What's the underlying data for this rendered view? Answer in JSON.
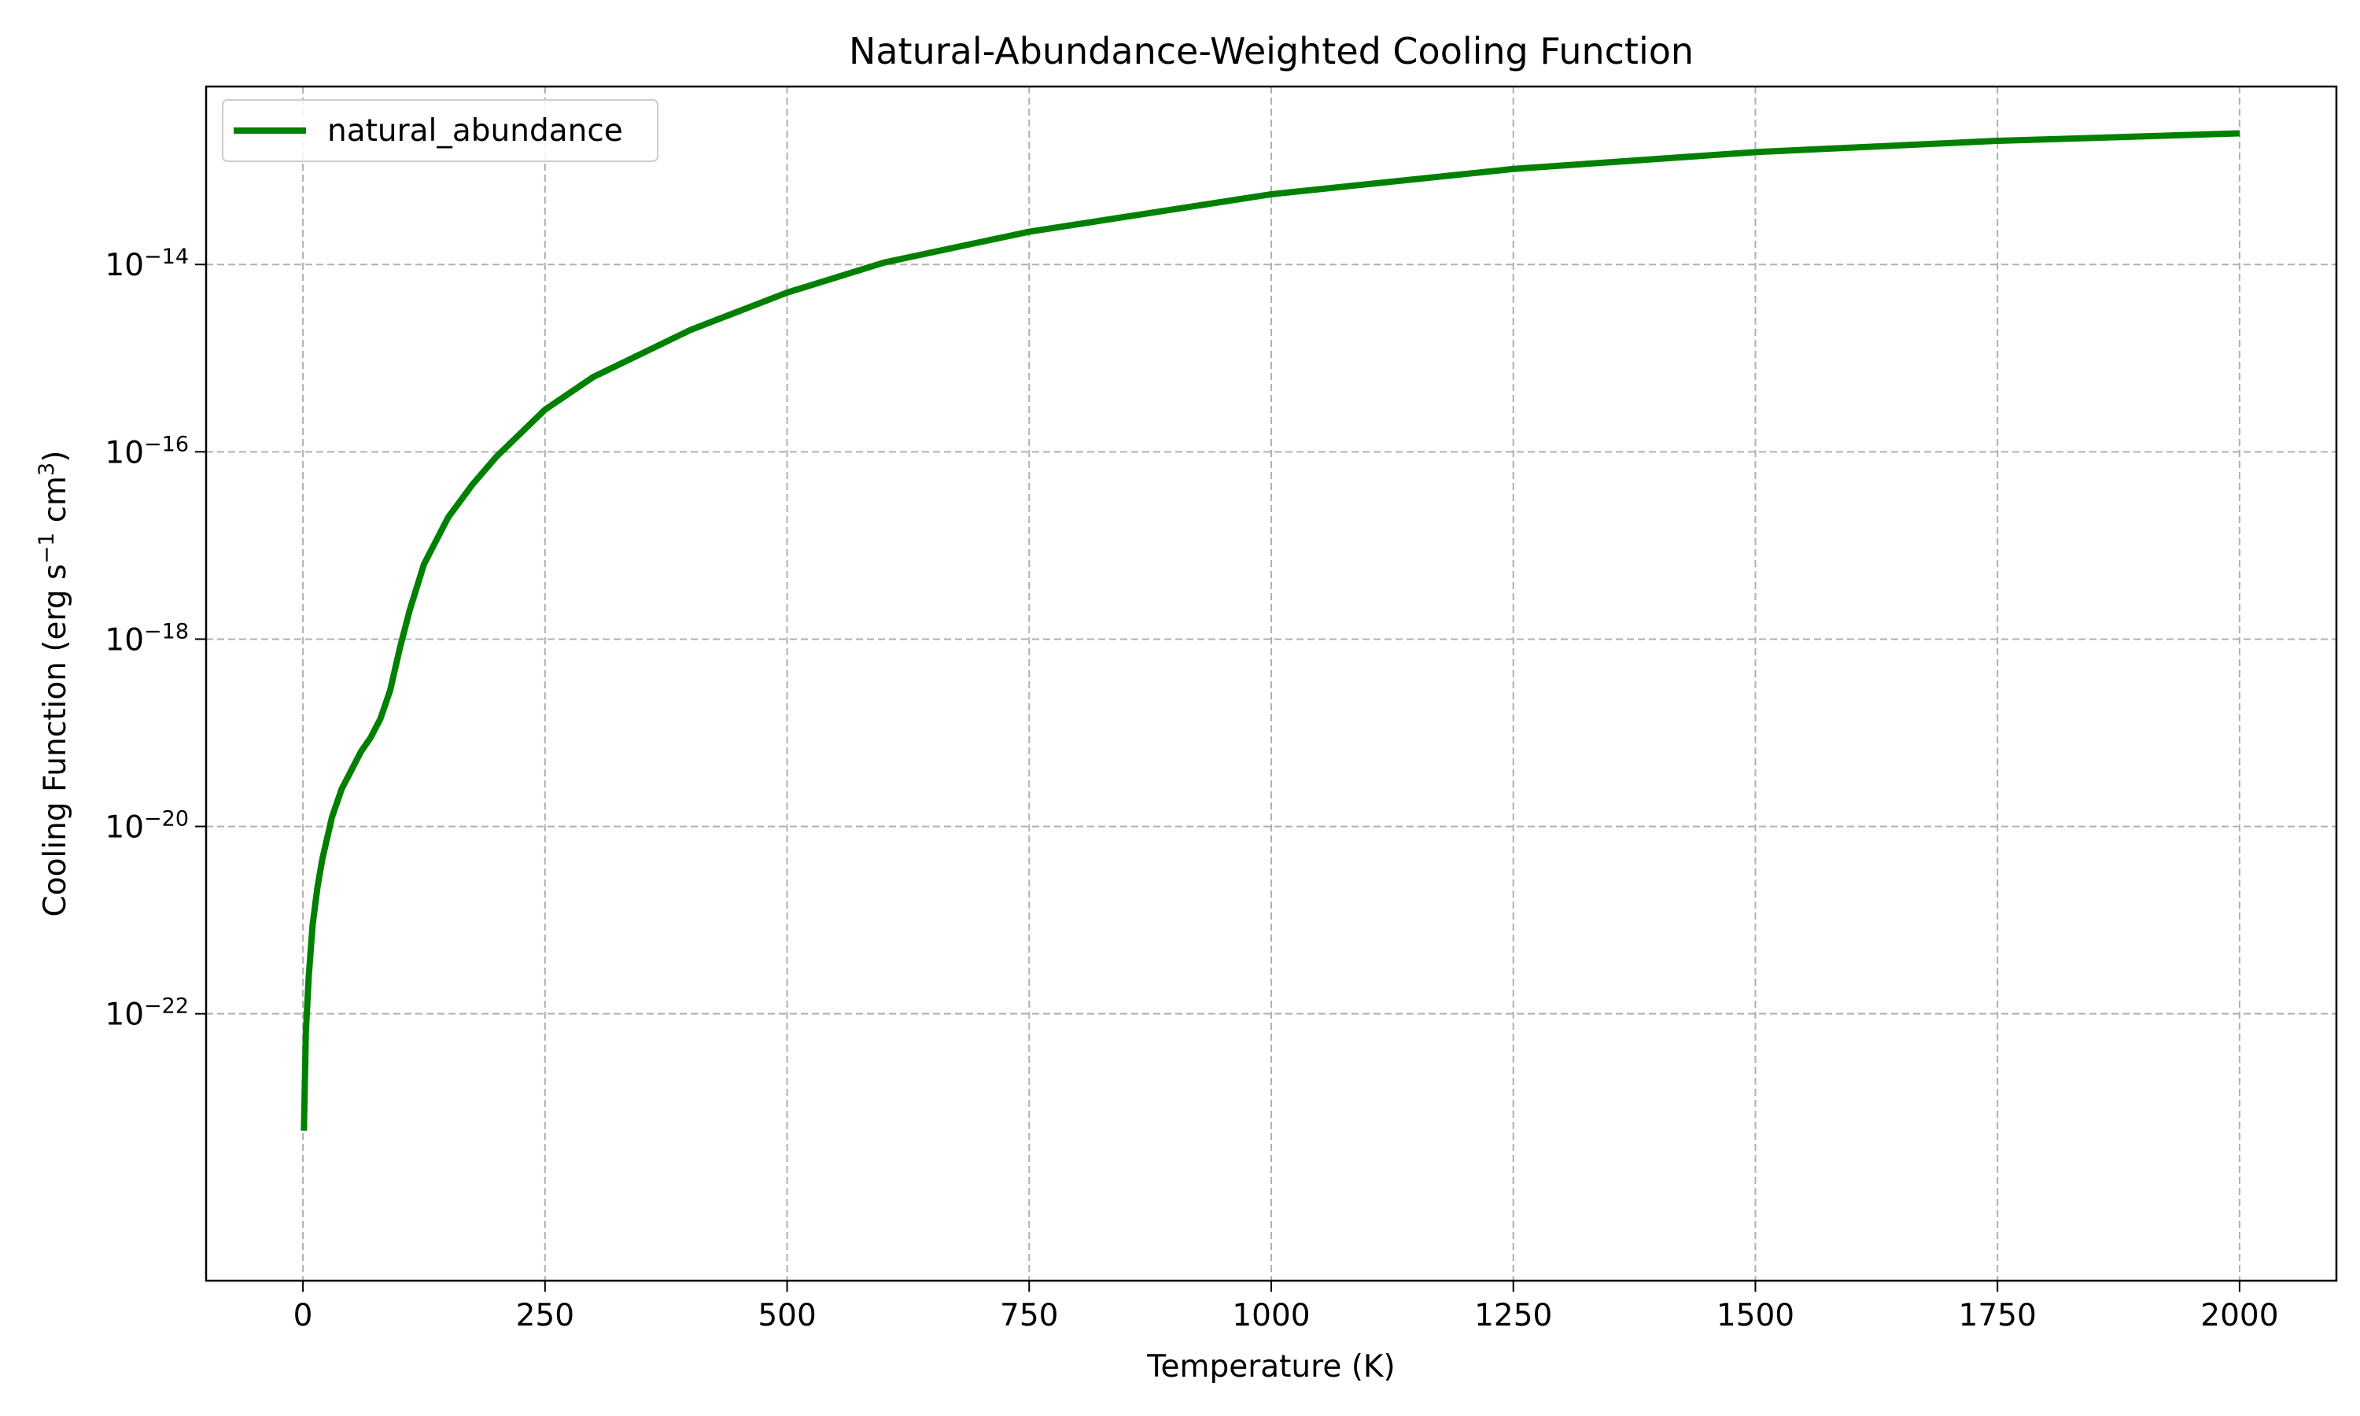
{
  "chart_data": {
    "type": "line",
    "title": "Natural-Abundance-Weighted Cooling Function",
    "xlabel": "Temperature (K)",
    "ylabel": {
      "prefix": "Cooling Function (erg s",
      "sup1": "−1",
      "mid": " cm",
      "sup2": "3",
      "suffix": ")"
    },
    "xscale": "linear",
    "yscale": "log",
    "xlim": [
      -100,
      2100
    ],
    "ylim_exponent": [
      -24.85,
      -12.1
    ],
    "x_ticks": [
      {
        "value": 0,
        "label": "0"
      },
      {
        "value": 250,
        "label": "250"
      },
      {
        "value": 500,
        "label": "500"
      },
      {
        "value": 750,
        "label": "750"
      },
      {
        "value": 1000,
        "label": "1000"
      },
      {
        "value": 1250,
        "label": "1250"
      },
      {
        "value": 1500,
        "label": "1500"
      },
      {
        "value": 1750,
        "label": "1750"
      },
      {
        "value": 2000,
        "label": "2000"
      }
    ],
    "y_ticks": [
      {
        "exponent": -22,
        "base": "10",
        "exp": "−22"
      },
      {
        "exponent": -20,
        "base": "10",
        "exp": "−20"
      },
      {
        "exponent": -18,
        "base": "10",
        "exp": "−18"
      },
      {
        "exponent": -16,
        "base": "10",
        "exp": "−16"
      },
      {
        "exponent": -14,
        "base": "10",
        "exp": "−14"
      }
    ],
    "grid": true,
    "legend_position": "top-left",
    "series": [
      {
        "name": "natural_abundance",
        "color": "#008000",
        "x": [
          1,
          3,
          6,
          10,
          15,
          20,
          30,
          40,
          50,
          60,
          70,
          80,
          90,
          100,
          110,
          125,
          150,
          175,
          200,
          250,
          300,
          400,
          500,
          600,
          750,
          1000,
          1250,
          1500,
          1750,
          2000
        ],
        "log10_y": [
          -23.25,
          -22.2,
          -21.6,
          -21.05,
          -20.65,
          -20.35,
          -19.9,
          -19.6,
          -19.4,
          -19.2,
          -19.05,
          -18.85,
          -18.55,
          -18.1,
          -17.7,
          -17.2,
          -16.7,
          -16.35,
          -16.05,
          -15.55,
          -15.2,
          -14.7,
          -14.3,
          -13.98,
          -13.65,
          -13.25,
          -12.98,
          -12.8,
          -12.68,
          -12.6
        ]
      }
    ]
  }
}
